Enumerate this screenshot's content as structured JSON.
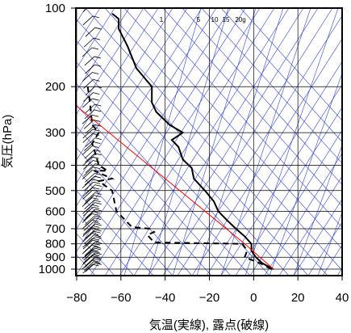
{
  "chart_data": {
    "type": "line",
    "xlabel": "気温(実線), 露点(破線)",
    "ylabel": "気圧(hPa)",
    "xlim": [
      -80,
      40
    ],
    "ylim": [
      1050,
      100
    ],
    "y_scale": "log",
    "x_ticks": [
      "−80",
      "−60",
      "−40",
      "−20",
      "0",
      "20",
      "40"
    ],
    "x_tick_values": [
      -80,
      -60,
      -40,
      -20,
      0,
      20,
      40
    ],
    "y_ticks": [
      "100",
      "200",
      "300",
      "400",
      "500",
      "600",
      "700",
      "800",
      "900",
      "1000"
    ],
    "y_tick_values": [
      100,
      200,
      300,
      400,
      500,
      600,
      700,
      800,
      900,
      1000
    ],
    "mixing_ratio_labels": [
      "1",
      "5",
      "10",
      "15",
      "20g"
    ],
    "colors": {
      "temperature": "#000000",
      "dewpoint": "#000000",
      "reference_lines": "#3344cc",
      "parcel": "#ff0000",
      "grid": "#000000"
    },
    "series": [
      {
        "kind": "temperature",
        "points": [
          [
            9,
            1000
          ],
          [
            4,
            950
          ],
          [
            1,
            900
          ],
          [
            -1,
            850
          ],
          [
            -1,
            800
          ],
          [
            -4,
            750
          ],
          [
            -8,
            700
          ],
          [
            -12,
            650
          ],
          [
            -16,
            600
          ],
          [
            -18,
            550
          ],
          [
            -22,
            500
          ],
          [
            -27,
            450
          ],
          [
            -28,
            410
          ],
          [
            -32,
            380
          ],
          [
            -34,
            340
          ],
          [
            -37,
            320
          ],
          [
            -32,
            300
          ],
          [
            -38,
            280
          ],
          [
            -44,
            250
          ],
          [
            -46,
            230
          ],
          [
            -46,
            200
          ],
          [
            -53,
            170
          ],
          [
            -57,
            140
          ],
          [
            -61,
            120
          ],
          [
            -61,
            110
          ],
          [
            -64,
            105
          ]
        ]
      },
      {
        "kind": "dewpoint",
        "points": [
          [
            8,
            1000
          ],
          [
            3,
            950
          ],
          [
            -4,
            900
          ],
          [
            -3,
            850
          ],
          [
            -5,
            800
          ],
          [
            -45,
            790
          ],
          [
            -48,
            740
          ],
          [
            -45,
            720
          ],
          [
            -47,
            700
          ],
          [
            -55,
            690
          ],
          [
            -62,
            600
          ],
          [
            -64,
            500
          ],
          [
            -70,
            460
          ],
          [
            -64,
            450
          ],
          [
            -72,
            420
          ],
          [
            -66,
            420
          ],
          [
            -70,
            400
          ],
          [
            -72,
            350
          ],
          [
            -73,
            330
          ],
          [
            -70,
            300
          ],
          [
            -73,
            280
          ],
          [
            -74,
            230
          ],
          [
            -75,
            200
          ]
        ]
      },
      {
        "kind": "parcel",
        "points": [
          [
            9,
            1000
          ],
          [
            -4,
            800
          ],
          [
            -82,
            230
          ]
        ]
      }
    ],
    "wind_barbs": "left margin, 100–1000 hPa"
  }
}
